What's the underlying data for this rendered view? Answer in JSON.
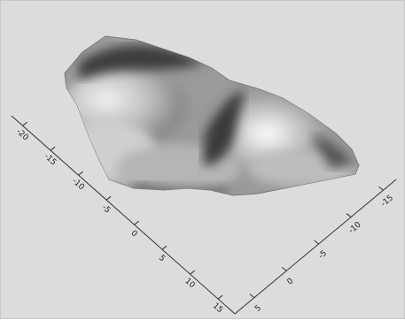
{
  "chart_data": {
    "type": "surface",
    "title": "",
    "xlabel": "",
    "ylabel": "",
    "zlabel": "",
    "grid": false,
    "legend": "none",
    "background_color": "#dcdcdc",
    "surface_colormap": "grayscale",
    "axes": {
      "left_axis": {
        "ticks": [
          {
            "value": 15,
            "label": "15"
          },
          {
            "value": 10,
            "label": "10"
          },
          {
            "value": 5,
            "label": "5"
          },
          {
            "value": 0,
            "label": "0"
          },
          {
            "value": -5,
            "label": "-5"
          },
          {
            "value": -10,
            "label": "-10"
          },
          {
            "value": -15,
            "label": "-15"
          },
          {
            "value": -20,
            "label": "-20"
          }
        ],
        "range": [
          -22,
          18
        ]
      },
      "right_axis": {
        "ticks": [
          {
            "value": 5,
            "label": "5"
          },
          {
            "value": 0,
            "label": "0"
          },
          {
            "value": -5,
            "label": "-5"
          },
          {
            "value": -10,
            "label": "-10"
          },
          {
            "value": -15,
            "label": "-15"
          }
        ],
        "range": [
          8,
          -17
        ]
      }
    }
  }
}
